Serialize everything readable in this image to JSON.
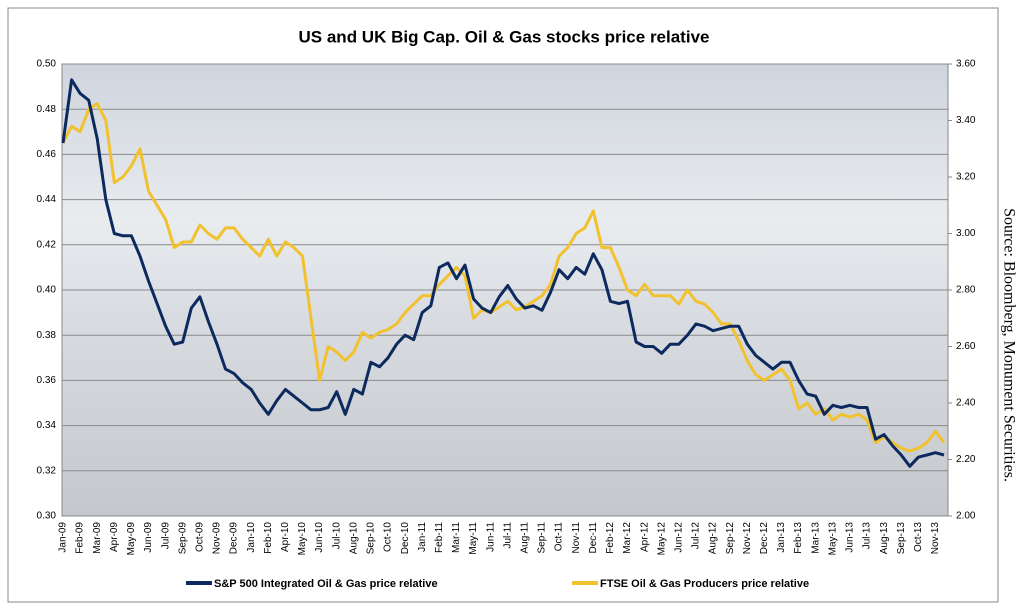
{
  "chart_data": {
    "type": "line",
    "title": "US and UK Big Cap. Oil & Gas stocks price relative",
    "source": "Source: Bloomberg, Monument Securities.",
    "categories": [
      "Jan-09",
      null,
      "Feb-09",
      null,
      "Mar-09",
      null,
      "Apr-09",
      null,
      "May-09",
      null,
      "Jun-09",
      null,
      "Jul-09",
      null,
      "Sep-09",
      null,
      "Oct-09",
      null,
      "Nov-09",
      null,
      "Dec-09",
      null,
      "Jan-10",
      null,
      "Feb-10",
      null,
      "Apr-10",
      null,
      "May-10",
      null,
      "Jun-10",
      null,
      "Jul-10",
      null,
      "Aug-10",
      null,
      "Sep-10",
      null,
      "Oct-10",
      null,
      "Dec-10",
      null,
      "Jan-11",
      null,
      "Feb-11",
      null,
      "Mar-11",
      null,
      "May-11",
      null,
      "Jun-11",
      null,
      "Jul-11",
      null,
      "Aug-11",
      null,
      "Sep-11",
      null,
      "Oct-11",
      null,
      "Nov-11",
      null,
      "Dec-11",
      null,
      "Feb-12",
      null,
      "Mar-12",
      null,
      "Apr-12",
      null,
      "May-12",
      null,
      "Jun-12",
      null,
      "Jul-12",
      null,
      "Aug-12",
      null,
      "Sep-12",
      null,
      "Nov-12",
      null,
      "Dec-12",
      null,
      "Jan-13",
      null,
      "Feb-13",
      null,
      "Mar-13",
      null,
      "May-13",
      null,
      "Jun-13",
      null,
      "Jul-13",
      null,
      "Aug-13",
      null,
      "Sep-13",
      null,
      "Oct-13",
      null,
      "Nov-13",
      null
    ],
    "series": [
      {
        "name": "S&P 500 Integrated Oil & Gas price relative",
        "color": "#0d2a5e",
        "values": [
          0.465,
          0.493,
          0.487,
          0.484,
          0.467,
          0.44,
          0.425,
          0.424,
          0.424,
          0.415,
          0.404,
          0.394,
          0.384,
          0.376,
          0.377,
          0.392,
          0.397,
          0.386,
          0.376,
          0.365,
          0.363,
          0.359,
          0.356,
          0.35,
          0.345,
          0.351,
          0.356,
          0.353,
          0.35,
          0.347,
          0.347,
          0.348,
          0.355,
          0.345,
          0.356,
          0.354,
          0.368,
          0.366,
          0.37,
          0.376,
          0.38,
          0.378,
          0.39,
          0.393,
          0.41,
          0.412,
          0.405,
          0.411,
          0.396,
          0.392,
          0.39,
          0.397,
          0.402,
          0.396,
          0.392,
          0.393,
          0.391,
          0.399,
          0.409,
          0.405,
          0.41,
          0.407,
          0.416,
          0.409,
          0.395,
          0.394,
          0.395,
          0.377,
          0.375,
          0.375,
          0.372,
          0.376,
          0.376,
          0.38,
          0.385,
          0.384,
          0.382,
          0.383,
          0.384,
          0.384,
          0.376,
          0.371,
          0.368,
          0.365,
          0.368,
          0.368,
          0.36,
          0.354,
          0.353,
          0.345,
          0.349,
          0.348,
          0.349,
          0.348,
          0.348,
          0.334,
          0.336,
          0.331,
          0.327,
          0.322,
          0.326,
          0.327,
          0.328,
          0.327
        ]
      },
      {
        "name": "FTSE Oil & Gas Producers price relative",
        "color": "#f2c12e",
        "axis": "y2",
        "values": [
          3.32,
          3.38,
          3.36,
          3.44,
          3.46,
          3.4,
          3.18,
          3.2,
          3.24,
          3.3,
          3.15,
          3.1,
          3.05,
          2.95,
          2.97,
          2.97,
          3.03,
          3.0,
          2.98,
          3.02,
          3.02,
          2.98,
          2.95,
          2.92,
          2.98,
          2.92,
          2.97,
          2.95,
          2.92,
          2.7,
          2.48,
          2.6,
          2.58,
          2.55,
          2.58,
          2.65,
          2.63,
          2.65,
          2.66,
          2.68,
          2.72,
          2.75,
          2.78,
          2.78,
          2.82,
          2.85,
          2.88,
          2.85,
          2.7,
          2.73,
          2.72,
          2.74,
          2.76,
          2.73,
          2.74,
          2.76,
          2.78,
          2.82,
          2.92,
          2.95,
          3.0,
          3.02,
          3.08,
          2.95,
          2.95,
          2.88,
          2.8,
          2.78,
          2.82,
          2.78,
          2.78,
          2.78,
          2.75,
          2.8,
          2.76,
          2.75,
          2.72,
          2.68,
          2.68,
          2.62,
          2.55,
          2.5,
          2.48,
          2.5,
          2.52,
          2.48,
          2.38,
          2.4,
          2.36,
          2.38,
          2.34,
          2.36,
          2.35,
          2.36,
          2.34,
          2.26,
          2.28,
          2.26,
          2.24,
          2.23,
          2.24,
          2.26,
          2.3,
          2.26
        ]
      }
    ],
    "ylim": [
      0.3,
      0.5
    ],
    "yticks": [
      {
        "value": 0.3,
        "label": "0.30"
      },
      {
        "value": 0.32,
        "label": "0.32"
      },
      {
        "value": 0.34,
        "label": "0.34"
      },
      {
        "value": 0.36,
        "label": "0.36"
      },
      {
        "value": 0.38,
        "label": "0.38"
      },
      {
        "value": 0.4,
        "label": "0.40"
      },
      {
        "value": 0.42,
        "label": "0.42"
      },
      {
        "value": 0.44,
        "label": "0.44"
      },
      {
        "value": 0.46,
        "label": "0.46"
      },
      {
        "value": 0.48,
        "label": "0.48"
      },
      {
        "value": 0.5,
        "label": "0.50"
      }
    ],
    "y2lim": [
      2.0,
      3.6
    ],
    "y2ticks": [
      {
        "value": 2.0,
        "label": "2.00"
      },
      {
        "value": 2.2,
        "label": "2.20"
      },
      {
        "value": 2.4,
        "label": "2.40"
      },
      {
        "value": 2.6,
        "label": "2.60"
      },
      {
        "value": 2.8,
        "label": "2.80"
      },
      {
        "value": 3.0,
        "label": "3.00"
      },
      {
        "value": 3.2,
        "label": "3.20"
      },
      {
        "value": 3.4,
        "label": "3.40"
      },
      {
        "value": 3.6,
        "label": "3.60"
      }
    ],
    "grid": true
  }
}
